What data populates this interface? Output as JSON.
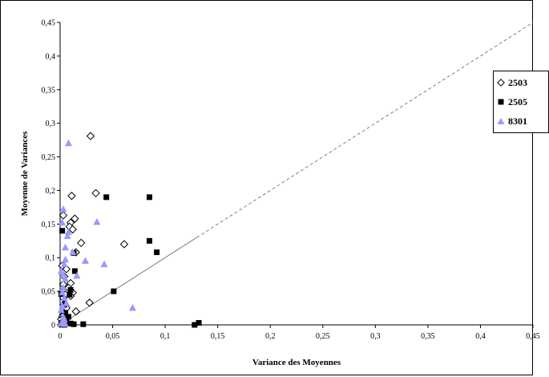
{
  "chart_data": {
    "type": "scatter",
    "title": "",
    "xlabel": "Variance des  Moyennes",
    "ylabel": "Moyenne de Variances",
    "xlim": [
      0,
      0.45
    ],
    "ylim": [
      0,
      0.45
    ],
    "xticks": [
      0,
      0.05,
      0.1,
      0.15,
      0.2,
      0.25,
      0.3,
      0.35,
      0.4,
      0.45
    ],
    "yticks": [
      0,
      0.05,
      0.1,
      0.15,
      0.2,
      0.25,
      0.3,
      0.35,
      0.4,
      0.45
    ],
    "xtick_labels": [
      "0",
      "0,05",
      "0,1",
      "0,15",
      "0,2",
      "0,25",
      "0,3",
      "0,35",
      "0,4",
      "0,45"
    ],
    "ytick_labels": [
      "0",
      "0,05",
      "0,1",
      "0,15",
      "0,2",
      "0,25",
      "0,3",
      "0,35",
      "0,4",
      "0,45"
    ],
    "grid": false,
    "legend_position": "right",
    "reference_line": {
      "x": [
        0,
        0.45
      ],
      "y": [
        0,
        0.45
      ],
      "solid_until": 0.13,
      "color": "#808080"
    },
    "series": [
      {
        "name": "2503",
        "marker": "diamond-open",
        "color": "#000000",
        "points": [
          [
            0.029,
            0.281
          ],
          [
            0.034,
            0.196
          ],
          [
            0.011,
            0.192
          ],
          [
            0.003,
            0.163
          ],
          [
            0.014,
            0.158
          ],
          [
            0.01,
            0.152
          ],
          [
            0.009,
            0.146
          ],
          [
            0.012,
            0.142
          ],
          [
            0.02,
            0.122
          ],
          [
            0.061,
            0.12
          ],
          [
            0.015,
            0.108
          ],
          [
            0.002,
            0.088
          ],
          [
            0.006,
            0.083
          ],
          [
            0.004,
            0.072
          ],
          [
            0.003,
            0.06
          ],
          [
            0.01,
            0.062
          ],
          [
            0.008,
            0.055
          ],
          [
            0.012,
            0.048
          ],
          [
            0.005,
            0.045
          ],
          [
            0.01,
            0.043
          ],
          [
            0.003,
            0.04
          ],
          [
            0.028,
            0.033
          ],
          [
            0.004,
            0.03
          ],
          [
            0.006,
            0.025
          ],
          [
            0.015,
            0.02
          ],
          [
            0.003,
            0.015
          ],
          [
            0.002,
            0.012
          ],
          [
            0.001,
            0.008
          ],
          [
            0.004,
            0.005
          ],
          [
            0.002,
            0.002
          ]
        ]
      },
      {
        "name": "2505",
        "marker": "square-filled",
        "color": "#000000",
        "points": [
          [
            0.044,
            0.19
          ],
          [
            0.085,
            0.19
          ],
          [
            0.002,
            0.14
          ],
          [
            0.085,
            0.125
          ],
          [
            0.092,
            0.108
          ],
          [
            0.013,
            0.107
          ],
          [
            0.014,
            0.08
          ],
          [
            0.051,
            0.05
          ],
          [
            0.01,
            0.052
          ],
          [
            0.009,
            0.045
          ],
          [
            0.001,
            0.046
          ],
          [
            0.004,
            0.03
          ],
          [
            0.005,
            0.018
          ],
          [
            0.008,
            0.012
          ],
          [
            0.003,
            0.008
          ],
          [
            0.006,
            0.004
          ],
          [
            0.01,
            0.002
          ],
          [
            0.022,
            0.001
          ],
          [
            0.013,
            0.001
          ],
          [
            0.128,
            0.0
          ],
          [
            0.132,
            0.003
          ],
          [
            0.001,
            0.001
          ],
          [
            0.004,
            0.0
          ],
          [
            0.002,
            0.003
          ]
        ]
      },
      {
        "name": "8301",
        "marker": "triangle-filled",
        "color": "#9999ff",
        "points": [
          [
            0.008,
            0.27
          ],
          [
            0.035,
            0.153
          ],
          [
            0.003,
            0.172
          ],
          [
            0.002,
            0.152
          ],
          [
            0.008,
            0.138
          ],
          [
            0.007,
            0.132
          ],
          [
            0.005,
            0.115
          ],
          [
            0.012,
            0.108
          ],
          [
            0.024,
            0.095
          ],
          [
            0.042,
            0.09
          ],
          [
            0.005,
            0.097
          ],
          [
            0.004,
            0.09
          ],
          [
            0.016,
            0.073
          ],
          [
            0.003,
            0.075
          ],
          [
            0.001,
            0.08
          ],
          [
            0.005,
            0.068
          ],
          [
            0.069,
            0.025
          ],
          [
            0.003,
            0.055
          ],
          [
            0.002,
            0.048
          ],
          [
            0.004,
            0.04
          ],
          [
            0.006,
            0.032
          ],
          [
            0.002,
            0.028
          ],
          [
            0.001,
            0.022
          ],
          [
            0.003,
            0.012
          ],
          [
            0.004,
            0.008
          ],
          [
            0.002,
            0.005
          ],
          [
            0.001,
            0.002
          ],
          [
            0.005,
            0.001
          ]
        ]
      }
    ]
  }
}
